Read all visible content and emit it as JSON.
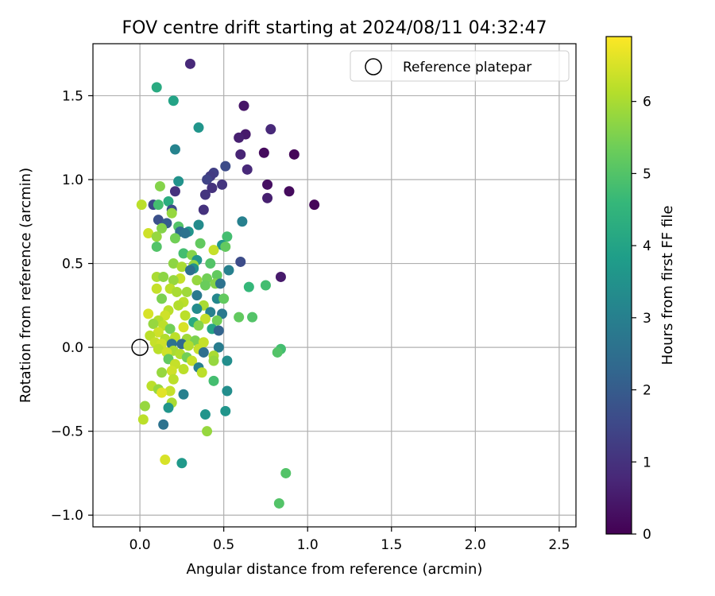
{
  "chart_data": {
    "type": "scatter",
    "title": "FOV centre drift starting at 2024/08/11 04:32:47",
    "xlabel": "Angular distance from reference (arcmin)",
    "ylabel": "Rotation from reference (arcmin)",
    "xlim": [
      -0.28,
      2.6
    ],
    "ylim": [
      -1.07,
      1.81
    ],
    "xticks": [
      "0.0",
      "0.5",
      "1.0",
      "1.5",
      "2.0",
      "2.5"
    ],
    "xtick_values": [
      0,
      0.5,
      1.0,
      1.5,
      2.0,
      2.5
    ],
    "yticks": [
      "−1.0",
      "−0.5",
      "0.0",
      "0.5",
      "1.0",
      "1.5"
    ],
    "ytick_values": [
      -1.0,
      -0.5,
      0,
      0.5,
      1.0,
      1.5
    ],
    "grid": true,
    "legend": {
      "position": "top-right",
      "entries": [
        "Reference platepar"
      ]
    },
    "reference_point": {
      "name": "Reference platepar",
      "x": 0,
      "y": 0,
      "marker": "open-circle"
    },
    "colorbar": {
      "label": "Hours from first FF file",
      "colormap": "viridis",
      "min": 0,
      "max": 6.9,
      "ticks": [
        "0",
        "1",
        "2",
        "3",
        "4",
        "5",
        "6"
      ],
      "tick_values": [
        0,
        1,
        2,
        3,
        4,
        5,
        6
      ]
    },
    "colormap_stops": [
      "#440154",
      "#482878",
      "#3e4989",
      "#31688e",
      "#26828e",
      "#1f9e89",
      "#35b779",
      "#6ece58",
      "#b5de2b",
      "#fde725"
    ],
    "points": [
      [
        0.3,
        1.69,
        0.8
      ],
      [
        0.1,
        1.55,
        4.2
      ],
      [
        0.2,
        1.47,
        4.0
      ],
      [
        0.62,
        1.44,
        0.4
      ],
      [
        0.35,
        1.31,
        3.6
      ],
      [
        0.78,
        1.3,
        0.8
      ],
      [
        0.63,
        1.27,
        0.5
      ],
      [
        0.59,
        1.25,
        0.6
      ],
      [
        0.21,
        1.18,
        3.1
      ],
      [
        0.74,
        1.16,
        0.2
      ],
      [
        0.92,
        1.15,
        0.1
      ],
      [
        0.6,
        1.15,
        0.7
      ],
      [
        0.51,
        1.08,
        1.6
      ],
      [
        0.64,
        1.06,
        0.8
      ],
      [
        0.44,
        1.04,
        1.3
      ],
      [
        0.42,
        1.02,
        1.2
      ],
      [
        0.4,
        1.0,
        1.4
      ],
      [
        0.23,
        0.99,
        3.5
      ],
      [
        0.76,
        0.97,
        0.3
      ],
      [
        0.49,
        0.97,
        1.1
      ],
      [
        0.43,
        0.95,
        1.0
      ],
      [
        0.12,
        0.96,
        5.6
      ],
      [
        0.89,
        0.93,
        0.2
      ],
      [
        0.21,
        0.93,
        1.0
      ],
      [
        0.39,
        0.91,
        1.1
      ],
      [
        0.76,
        0.89,
        0.6
      ],
      [
        0.17,
        0.87,
        4.3
      ],
      [
        1.04,
        0.85,
        0.1
      ],
      [
        0.08,
        0.85,
        1.5
      ],
      [
        0.11,
        0.85,
        4.8
      ],
      [
        0.01,
        0.85,
        6.2
      ],
      [
        0.19,
        0.82,
        1.6
      ],
      [
        0.38,
        0.82,
        1.0
      ],
      [
        0.19,
        0.8,
        5.8
      ],
      [
        0.11,
        0.76,
        1.7
      ],
      [
        0.61,
        0.75,
        3.0
      ],
      [
        0.16,
        0.74,
        2.0
      ],
      [
        0.35,
        0.73,
        3.3
      ],
      [
        0.23,
        0.72,
        5.0
      ],
      [
        0.13,
        0.71,
        5.6
      ],
      [
        0.29,
        0.69,
        3.6
      ],
      [
        0.24,
        0.69,
        2.4
      ],
      [
        0.05,
        0.68,
        6.4
      ],
      [
        0.27,
        0.68,
        2.6
      ],
      [
        0.1,
        0.66,
        5.8
      ],
      [
        0.21,
        0.65,
        5.4
      ],
      [
        0.52,
        0.66,
        4.8
      ],
      [
        0.36,
        0.62,
        5.2
      ],
      [
        0.49,
        0.61,
        3.6
      ],
      [
        0.1,
        0.6,
        5.0
      ],
      [
        0.44,
        0.58,
        6.3
      ],
      [
        0.51,
        0.6,
        5.2
      ],
      [
        0.26,
        0.56,
        4.8
      ],
      [
        0.31,
        0.55,
        5.6
      ],
      [
        0.34,
        0.52,
        3.6
      ],
      [
        0.6,
        0.51,
        1.6
      ],
      [
        0.42,
        0.5,
        5.0
      ],
      [
        0.2,
        0.5,
        5.7
      ],
      [
        0.32,
        0.49,
        5.8
      ],
      [
        0.25,
        0.48,
        6.0
      ],
      [
        0.32,
        0.47,
        3.5
      ],
      [
        0.53,
        0.46,
        3.0
      ],
      [
        0.3,
        0.46,
        2.5
      ],
      [
        0.84,
        0.42,
        0.5
      ],
      [
        0.1,
        0.42,
        6.0
      ],
      [
        0.14,
        0.42,
        5.7
      ],
      [
        0.34,
        0.4,
        5.8
      ],
      [
        0.46,
        0.43,
        5.2
      ],
      [
        0.4,
        0.41,
        5.4
      ],
      [
        0.24,
        0.41,
        6.3
      ],
      [
        0.2,
        0.4,
        5.8
      ],
      [
        0.45,
        0.38,
        5.6
      ],
      [
        0.48,
        0.38,
        2.6
      ],
      [
        0.39,
        0.37,
        5.3
      ],
      [
        0.75,
        0.37,
        4.8
      ],
      [
        0.65,
        0.36,
        4.6
      ],
      [
        0.1,
        0.35,
        6.3
      ],
      [
        0.18,
        0.35,
        6.2
      ],
      [
        0.22,
        0.33,
        6.0
      ],
      [
        0.28,
        0.33,
        5.9
      ],
      [
        0.34,
        0.31,
        2.8
      ],
      [
        0.13,
        0.29,
        5.5
      ],
      [
        0.46,
        0.29,
        3.2
      ],
      [
        0.5,
        0.29,
        5.2
      ],
      [
        0.26,
        0.27,
        6.2
      ],
      [
        0.23,
        0.25,
        6.1
      ],
      [
        0.38,
        0.25,
        6.0
      ],
      [
        0.34,
        0.23,
        3.3
      ],
      [
        0.17,
        0.22,
        6.2
      ],
      [
        0.42,
        0.21,
        3.0
      ],
      [
        0.49,
        0.2,
        2.8
      ],
      [
        0.59,
        0.18,
        5.2
      ],
      [
        0.67,
        0.18,
        5.0
      ],
      [
        0.05,
        0.2,
        6.5
      ],
      [
        0.15,
        0.19,
        6.4
      ],
      [
        0.27,
        0.19,
        6.2
      ],
      [
        0.39,
        0.17,
        6.3
      ],
      [
        0.46,
        0.16,
        5.4
      ],
      [
        0.11,
        0.16,
        6.1
      ],
      [
        0.32,
        0.15,
        4.2
      ],
      [
        0.08,
        0.14,
        5.8
      ],
      [
        0.14,
        0.13,
        6.2
      ],
      [
        0.35,
        0.13,
        5.6
      ],
      [
        0.26,
        0.12,
        6.5
      ],
      [
        0.43,
        0.11,
        4.0
      ],
      [
        0.47,
        0.1,
        2.2
      ],
      [
        0.18,
        0.11,
        5.4
      ],
      [
        0.11,
        0.09,
        6.4
      ],
      [
        0.06,
        0.07,
        6.2
      ],
      [
        0.21,
        0.06,
        6.2
      ],
      [
        0.28,
        0.05,
        5.9
      ],
      [
        0.15,
        0.05,
        6.1
      ],
      [
        0.09,
        0.03,
        6.3
      ],
      [
        0.33,
        0.04,
        5.5
      ],
      [
        0.38,
        0.03,
        6.3
      ],
      [
        0.13,
        0.02,
        6.4
      ],
      [
        0.19,
        0.02,
        2.6
      ],
      [
        0.25,
        0.02,
        2.4
      ],
      [
        0.29,
        0.01,
        6.1
      ],
      [
        0.47,
        0.0,
        2.9
      ],
      [
        0.35,
        -0.01,
        6.3
      ],
      [
        0.11,
        -0.01,
        6.2
      ],
      [
        0.2,
        -0.02,
        6.0
      ],
      [
        0.16,
        -0.03,
        6.4
      ],
      [
        0.84,
        -0.01,
        4.8
      ],
      [
        0.82,
        -0.03,
        5.0
      ],
      [
        0.24,
        -0.04,
        6.1
      ],
      [
        0.38,
        -0.03,
        2.5
      ],
      [
        0.44,
        -0.05,
        6.0
      ],
      [
        0.28,
        -0.06,
        5.4
      ],
      [
        0.17,
        -0.07,
        5.2
      ],
      [
        0.31,
        -0.08,
        6.3
      ],
      [
        0.52,
        -0.08,
        3.4
      ],
      [
        0.44,
        -0.08,
        5.8
      ],
      [
        0.21,
        -0.1,
        6.3
      ],
      [
        0.35,
        -0.12,
        3.0
      ],
      [
        0.26,
        -0.13,
        6.2
      ],
      [
        0.19,
        -0.14,
        6.4
      ],
      [
        0.13,
        -0.15,
        5.8
      ],
      [
        0.37,
        -0.15,
        6.2
      ],
      [
        0.2,
        -0.19,
        6.2
      ],
      [
        0.44,
        -0.2,
        4.8
      ],
      [
        0.07,
        -0.23,
        6.2
      ],
      [
        0.11,
        -0.25,
        5.8
      ],
      [
        0.52,
        -0.26,
        3.4
      ],
      [
        0.18,
        -0.26,
        6.3
      ],
      [
        0.13,
        -0.27,
        6.6
      ],
      [
        0.26,
        -0.28,
        3.0
      ],
      [
        0.19,
        -0.33,
        6.0
      ],
      [
        0.03,
        -0.35,
        5.8
      ],
      [
        0.17,
        -0.36,
        3.6
      ],
      [
        0.51,
        -0.38,
        3.6
      ],
      [
        0.39,
        -0.4,
        3.6
      ],
      [
        0.02,
        -0.43,
        6.2
      ],
      [
        0.14,
        -0.46,
        2.6
      ],
      [
        0.4,
        -0.5,
        5.8
      ],
      [
        0.15,
        -0.67,
        6.5
      ],
      [
        0.25,
        -0.69,
        3.7
      ],
      [
        0.87,
        -0.75,
        5.0
      ],
      [
        0.83,
        -0.93,
        5.0
      ]
    ]
  }
}
